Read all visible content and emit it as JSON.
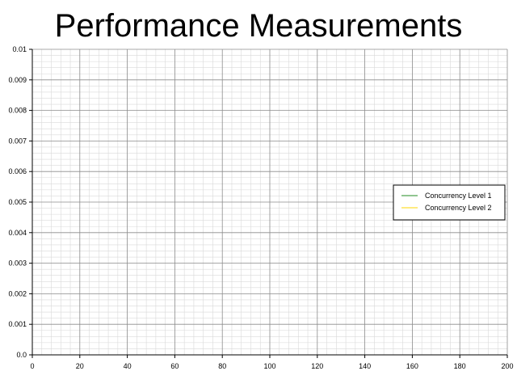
{
  "chart_data": {
    "type": "line",
    "title": "Performance Measurements",
    "xlabel": "",
    "ylabel": "",
    "xlim": [
      0,
      200
    ],
    "ylim": [
      0,
      0.01
    ],
    "xticks": [
      "0",
      "20",
      "40",
      "60",
      "80",
      "100",
      "120",
      "140",
      "160",
      "180",
      "200"
    ],
    "yticks": [
      "0.0",
      "0.001",
      "0.002",
      "0.003",
      "0.004",
      "0.005",
      "0.006",
      "0.007",
      "0.008",
      "0.009",
      "0.01"
    ],
    "grid": true,
    "legend_position": "right",
    "series": [
      {
        "name": "Concurrency Level 1",
        "color": "#228b22",
        "x": [],
        "y": []
      },
      {
        "name": "Concurrency Level 2",
        "color": "#ffd700",
        "x": [],
        "y": []
      }
    ]
  }
}
